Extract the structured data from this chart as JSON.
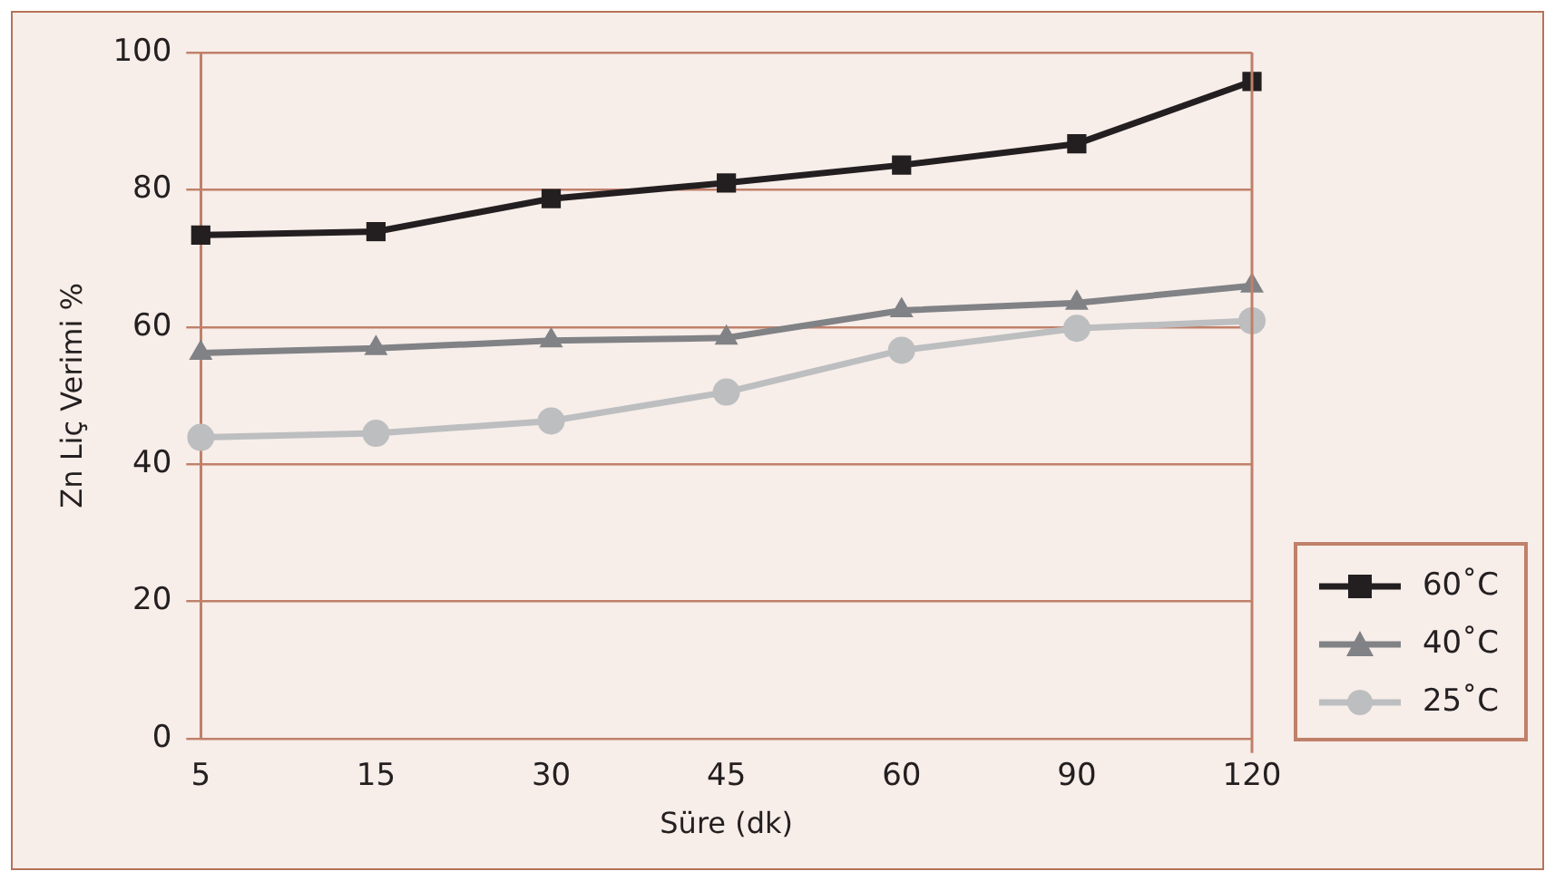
{
  "chart_data": {
    "type": "line",
    "xlabel": "Süre (dk)",
    "ylabel": "Zn Liç Verimi %",
    "categories": [
      "5",
      "15",
      "30",
      "45",
      "60",
      "90",
      "120"
    ],
    "series": [
      {
        "name": "60˚C",
        "color": "#231f20",
        "marker": "square",
        "values": [
          73.4,
          73.9,
          78.7,
          81.0,
          83.6,
          86.7,
          95.8
        ]
      },
      {
        "name": "40˚C",
        "color": "#808285",
        "marker": "triangle",
        "values": [
          56.2,
          56.9,
          58.0,
          58.4,
          62.4,
          63.5,
          66.0
        ]
      },
      {
        "name": "25˚C",
        "color": "#bcbec0",
        "marker": "circle",
        "values": [
          43.9,
          44.5,
          46.3,
          50.5,
          56.6,
          59.8,
          60.9
        ]
      }
    ],
    "ylim": [
      0,
      100
    ],
    "yticks": [
      0,
      20,
      40,
      60,
      80,
      100
    ],
    "grid": "y",
    "legend": "bottom right",
    "line_style": "solid"
  }
}
